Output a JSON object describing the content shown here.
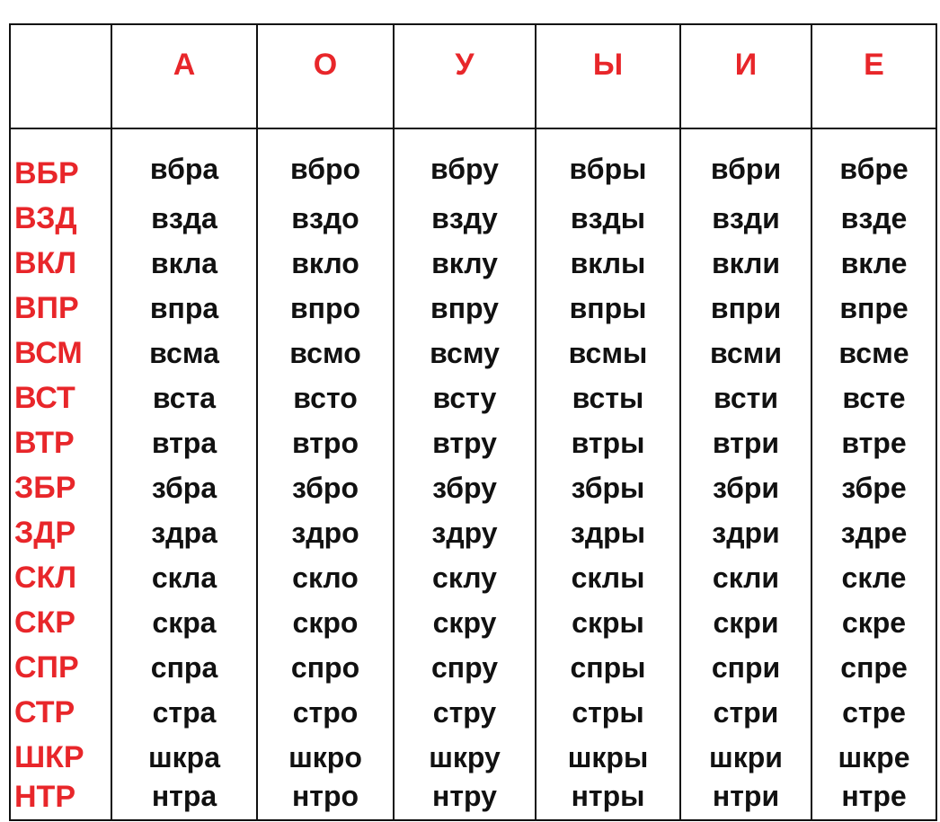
{
  "colors": {
    "header_text": "#e8262a",
    "body_text": "#111111",
    "grid_lines": "#111111",
    "background": "#ffffff"
  },
  "table": {
    "corner": "",
    "vowels": [
      "А",
      "О",
      "У",
      "Ы",
      "И",
      "Е"
    ],
    "rows": [
      {
        "cluster": "ВБР",
        "cells": [
          "вбра",
          "вбро",
          "вбру",
          "вбры",
          "вбри",
          "вбре"
        ]
      },
      {
        "cluster": "ВЗД",
        "cells": [
          "взда",
          "вздо",
          "вздy",
          "взды",
          "взди",
          "вздe"
        ]
      },
      {
        "cluster": "ВКЛ",
        "cells": [
          "вкла",
          "вкло",
          "вклу",
          "вклы",
          "вкли",
          "вкле"
        ]
      },
      {
        "cluster": "ВПР",
        "cells": [
          "впра",
          "впро",
          "впру",
          "впры",
          "впри",
          "впре"
        ]
      },
      {
        "cluster": "ВСМ",
        "cells": [
          "всма",
          "всмо",
          "всму",
          "всмы",
          "всми",
          "всме"
        ]
      },
      {
        "cluster": "ВСТ",
        "cells": [
          "вста",
          "всто",
          "всту",
          "всты",
          "всти",
          "всте"
        ]
      },
      {
        "cluster": "ВТР",
        "cells": [
          "втра",
          "втро",
          "втру",
          "втры",
          "втри",
          "втре"
        ]
      },
      {
        "cluster": "ЗБР",
        "cells": [
          "збра",
          "збро",
          "збру",
          "збры",
          "збри",
          "збре"
        ]
      },
      {
        "cluster": "ЗДР",
        "cells": [
          "здра",
          "здро",
          "здру",
          "здры",
          "здри",
          "здре"
        ]
      },
      {
        "cluster": "СКЛ",
        "cells": [
          "скла",
          "скло",
          "склу",
          "склы",
          "скли",
          "скле"
        ]
      },
      {
        "cluster": "СКР",
        "cells": [
          "скра",
          "скро",
          "скру",
          "скры",
          "скри",
          "скре"
        ]
      },
      {
        "cluster": "СПР",
        "cells": [
          "спра",
          "спро",
          "спру",
          "спры",
          "спри",
          "спре"
        ]
      },
      {
        "cluster": "СТР",
        "cells": [
          "стра",
          "стро",
          "стру",
          "стры",
          "стри",
          "стре"
        ]
      },
      {
        "cluster": "ШКР",
        "cells": [
          "шкра",
          "шкро",
          "шкру",
          "шкры",
          "шкри",
          "шкре"
        ]
      },
      {
        "cluster": "НТР",
        "cells": [
          "нтра",
          "нтро",
          "нтру",
          "нтры",
          "нтри",
          "нтре"
        ]
      }
    ]
  }
}
